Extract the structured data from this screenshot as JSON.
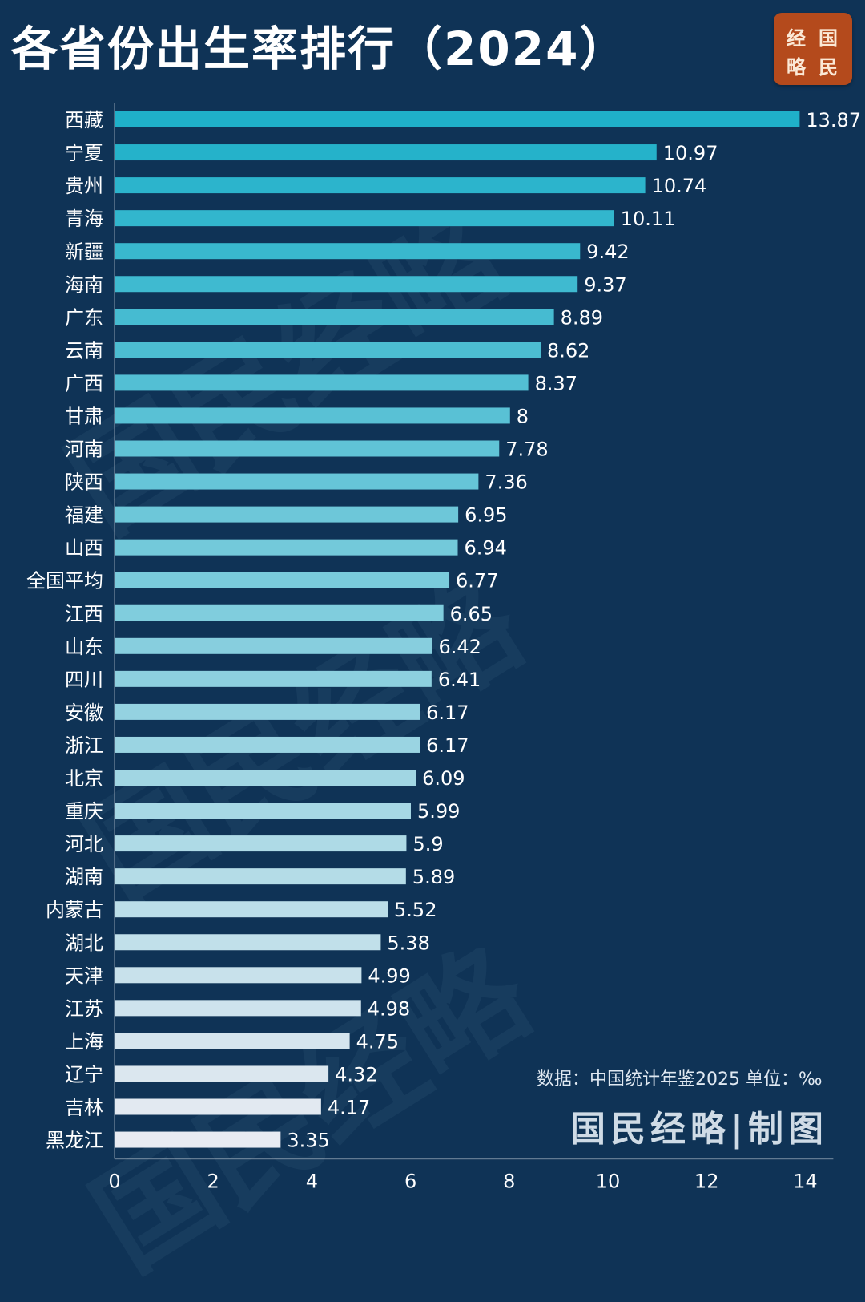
{
  "title": "各省份出生率排行（2024）",
  "logo": {
    "chars": [
      "经",
      "国",
      "略",
      "民"
    ]
  },
  "brand_mark": "国民经略|制图",
  "source_note": "数据：中国统计年鉴2025 单位：‰",
  "colors": {
    "background": "#0f3356",
    "bar_top": "#1fb0c9",
    "bar_bottom": "#e8ebf2",
    "logo": "#b44a1c",
    "text": "#ffffff"
  },
  "chart_data": {
    "type": "bar",
    "orientation": "horizontal",
    "categories": [
      "西藏",
      "宁夏",
      "贵州",
      "青海",
      "新疆",
      "海南",
      "广东",
      "云南",
      "广西",
      "甘肃",
      "河南",
      "陕西",
      "福建",
      "山西",
      "全国平均",
      "江西",
      "山东",
      "四川",
      "安徽",
      "浙江",
      "北京",
      "重庆",
      "河北",
      "湖南",
      "内蒙古",
      "湖北",
      "天津",
      "江苏",
      "上海",
      "辽宁",
      "吉林",
      "黑龙江"
    ],
    "values": [
      13.87,
      10.97,
      10.74,
      10.11,
      9.42,
      9.37,
      8.89,
      8.62,
      8.37,
      8,
      7.78,
      7.36,
      6.95,
      6.94,
      6.77,
      6.65,
      6.42,
      6.41,
      6.17,
      6.17,
      6.09,
      5.99,
      5.9,
      5.89,
      5.52,
      5.38,
      4.99,
      4.98,
      4.75,
      4.32,
      4.17,
      3.35
    ],
    "value_labels": [
      "13.87",
      "10.97",
      "10.74",
      "10.11",
      "9.42",
      "9.37",
      "8.89",
      "8.62",
      "8.37",
      "8",
      "7.78",
      "7.36",
      "6.95",
      "6.94",
      "6.77",
      "6.65",
      "6.42",
      "6.41",
      "6.17",
      "6.17",
      "6.09",
      "5.99",
      "5.9",
      "5.89",
      "5.52",
      "5.38",
      "4.99",
      "4.98",
      "4.75",
      "4.32",
      "4.17",
      "3.35"
    ],
    "xlim": [
      0,
      14
    ],
    "x_ticks": [
      "0",
      "2",
      "4",
      "6",
      "8",
      "10",
      "12",
      "14"
    ],
    "title": "各省份出生率排行（2024）",
    "xlabel": "",
    "ylabel": "",
    "grid": false,
    "legend": "none"
  }
}
